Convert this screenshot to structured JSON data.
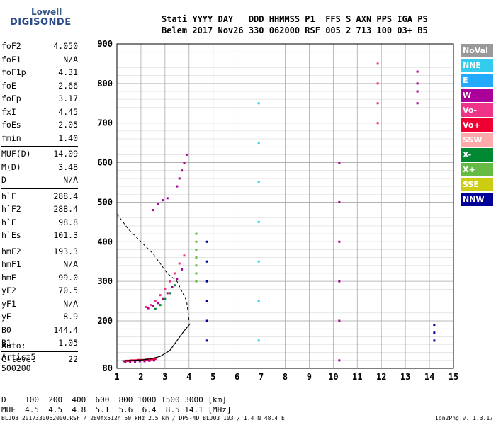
{
  "logo": {
    "top": "Lowell",
    "bottom": "DIGISONDE"
  },
  "header": {
    "labels": "Stati YYYY DAY   DDD HHMMSS P1  FFS S AXN PPS IGA PS",
    "values": "Belem 2017 Nov26 330 062000 RSF 005 2 713 100 03+ B5"
  },
  "params": [
    {
      "name": "foF2",
      "value": "4.050"
    },
    {
      "name": "foF1",
      "value": "N/A"
    },
    {
      "name": "foF1p",
      "value": "4.31"
    },
    {
      "name": "foE",
      "value": "2.66"
    },
    {
      "name": "foEp",
      "value": "3.17"
    },
    {
      "name": "fxI",
      "value": "4.45"
    },
    {
      "name": "foEs",
      "value": "2.05"
    },
    {
      "name": "fmin",
      "value": "1.40"
    },
    {
      "divider": true
    },
    {
      "name": "MUF(D)",
      "value": "14.09"
    },
    {
      "name": "M(D)",
      "value": "3.48"
    },
    {
      "name": "D",
      "value": "N/A"
    },
    {
      "divider": true
    },
    {
      "name": "h`F",
      "value": "288.4"
    },
    {
      "name": "h`F2",
      "value": "288.4"
    },
    {
      "name": "h`E",
      "value": "98.8"
    },
    {
      "name": "h`Es",
      "value": "101.3"
    },
    {
      "divider": true
    },
    {
      "name": "hmF2",
      "value": "193.3"
    },
    {
      "name": "hmF1",
      "value": "N/A"
    },
    {
      "name": "hmE",
      "value": "99.0"
    },
    {
      "name": "yF2",
      "value": "70.5"
    },
    {
      "name": "yF1",
      "value": "N/A"
    },
    {
      "name": "yE",
      "value": "8.9"
    },
    {
      "name": "B0",
      "value": "144.4"
    },
    {
      "name": "B1",
      "value": "1.05"
    },
    {
      "divider": true
    },
    {
      "name": "C-level",
      "value": "22"
    }
  ],
  "autoscale": {
    "line1": "Auto:",
    "line2": "Artist5",
    "line3": "500200"
  },
  "legend": [
    {
      "label": "NoVal",
      "color": "#999999"
    },
    {
      "label": "NNE",
      "color": "#33ccee"
    },
    {
      "label": "E",
      "color": "#22aaff"
    },
    {
      "label": "W",
      "color": "#aa0099"
    },
    {
      "label": "Vo-",
      "color": "#ee3388"
    },
    {
      "label": "Vo+",
      "color": "#ee0033"
    },
    {
      "label": "SSW",
      "color": "#ffaaaa"
    },
    {
      "label": "X-",
      "color": "#008833"
    },
    {
      "label": "X+",
      "color": "#66bb44"
    },
    {
      "label": "SSE",
      "color": "#cccc11"
    },
    {
      "label": "NNW",
      "color": "#000099"
    }
  ],
  "chart_data": {
    "type": "scatter",
    "xlim": [
      1,
      15
    ],
    "ylim": [
      80,
      900
    ],
    "xticks": [
      "1",
      "2",
      "3",
      "4",
      "5",
      "6",
      "7",
      "8",
      "9",
      "10",
      "11",
      "12",
      "13",
      "14",
      "15"
    ],
    "yticks": [
      "80",
      "200",
      "300",
      "400",
      "500",
      "600",
      "700",
      "800",
      "900"
    ],
    "yticks_values": [
      80,
      200,
      300,
      400,
      500,
      600,
      700,
      800,
      900
    ],
    "grid": true,
    "profile": {
      "x": [
        1.2,
        1.6,
        2.0,
        2.4,
        2.8,
        3.2,
        3.5,
        3.8,
        4.05
      ],
      "y": [
        99,
        100,
        101,
        104,
        110,
        125,
        150,
        175,
        193
      ]
    },
    "dashed_profile": {
      "x": [
        1.0,
        1.5,
        2.0,
        2.5,
        2.8,
        3.1,
        3.5,
        3.9,
        4.0
      ],
      "y": [
        470,
        430,
        400,
        370,
        345,
        320,
        300,
        250,
        200
      ]
    },
    "traces": [
      {
        "x": [
          1.3,
          1.4,
          1.5,
          1.6,
          1.7,
          1.8,
          1.9,
          2.0,
          2.1,
          2.2,
          2.3,
          2.4,
          2.5,
          2.6
        ],
        "y": [
          98,
          99,
          99,
          100,
          100,
          100,
          101,
          101,
          101,
          102,
          102,
          103,
          103,
          104
        ],
        "color": "#ee0033"
      },
      {
        "x": [
          1.35,
          1.55,
          1.75,
          1.95,
          2.15,
          2.35,
          2.55
        ],
        "y": [
          96,
          97,
          97,
          98,
          98,
          99,
          100
        ],
        "color": "#aa0099"
      },
      {
        "x": [
          2.2,
          2.4,
          2.6,
          2.8,
          3.0,
          3.2,
          3.4,
          3.6,
          3.8
        ],
        "y": [
          235,
          240,
          250,
          265,
          280,
          300,
          320,
          345,
          365
        ],
        "color": "#ee3388"
      },
      {
        "x": [
          2.3,
          2.5,
          2.7,
          2.9,
          3.1,
          3.3,
          3.5,
          3.7
        ],
        "y": [
          232,
          238,
          245,
          255,
          270,
          285,
          305,
          330
        ],
        "color": "#aa0099"
      },
      {
        "x": [
          2.6,
          2.8,
          3.0,
          3.2,
          3.4
        ],
        "y": [
          230,
          240,
          255,
          270,
          290
        ],
        "color": "#008833"
      },
      {
        "x": [
          2.5,
          2.7,
          2.9,
          3.1
        ],
        "y": [
          480,
          495,
          505,
          510
        ],
        "color": "#aa0099"
      },
      {
        "x": [
          3.5,
          3.6,
          3.7,
          3.8,
          3.9
        ],
        "y": [
          540,
          560,
          580,
          600,
          620
        ],
        "color": "#aa0099"
      },
      {
        "x": [
          4.3,
          4.3,
          4.3,
          4.3,
          4.3,
          4.3,
          4.3
        ],
        "y": [
          300,
          320,
          340,
          360,
          380,
          400,
          420
        ],
        "color": "#66bb44"
      },
      {
        "x": [
          4.75,
          4.75,
          4.75,
          4.75,
          4.75,
          4.75
        ],
        "y": [
          150,
          200,
          250,
          300,
          350,
          400
        ],
        "color": "#000099"
      },
      {
        "x": [
          6.9,
          6.9,
          6.9,
          6.9,
          6.9,
          6.9,
          6.9
        ],
        "y": [
          150,
          250,
          350,
          450,
          550,
          650,
          750
        ],
        "color": "#33ccee"
      },
      {
        "x": [
          10.25,
          10.25,
          10.25,
          10.25,
          10.25,
          10.25
        ],
        "y": [
          100,
          200,
          300,
          400,
          500,
          600
        ],
        "color": "#aa0099"
      },
      {
        "x": [
          11.85,
          11.85,
          11.85,
          11.85
        ],
        "y": [
          700,
          750,
          800,
          850
        ],
        "color": "#ee3388"
      },
      {
        "x": [
          13.5,
          13.5,
          13.5,
          13.5
        ],
        "y": [
          750,
          780,
          800,
          830
        ],
        "color": "#aa0099"
      },
      {
        "x": [
          14.2,
          14.2,
          14.2
        ],
        "y": [
          150,
          170,
          190
        ],
        "color": "#000099"
      }
    ]
  },
  "dtable": {
    "line1": "D    100  200  400  600  800 1000 1500 3000 [km]",
    "line2": "MUF  4.5  4.5  4.8  5.1  5.6  6.4  8.5 14.1 [MHz]"
  },
  "footer": "BLJ03_2017330062000.RSF / 280fx512h 50 kHz 2.5 km / DPS-4D BLJ03 103 / 1.4 N 48.4 E",
  "version": "Ion2Png v. 1.3.17"
}
